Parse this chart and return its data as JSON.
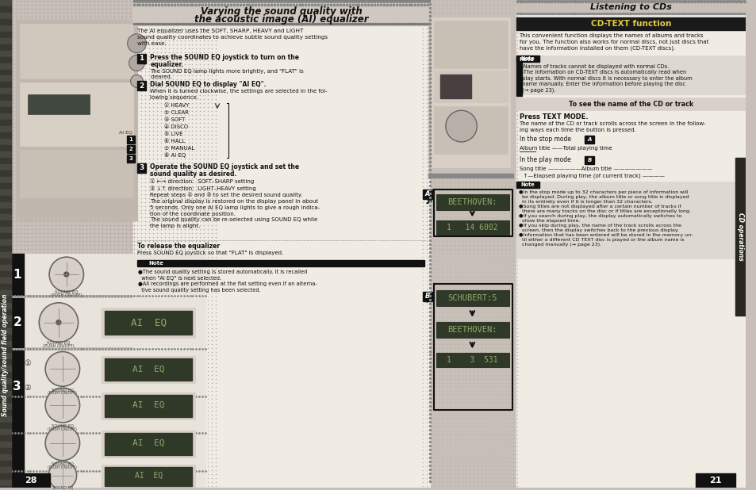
{
  "bg_color": "#c8c0b8",
  "left_page_num": "28",
  "right_page_num": "21",
  "left_title_line1": "Varying the sound quality with",
  "left_title_line2": "the acoustic image (AI) equalizer",
  "right_title": "Listening to CDs",
  "cd_text_title": "CD-TEXT function",
  "sidebar_text": "Sound quality/sound field operation",
  "cd_ops_text": "CD operations",
  "dot_color": "#a8a098",
  "dot_color2": "#b8b0a8",
  "white": "#f0ece4",
  "black": "#111111",
  "display_bg": "#303828",
  "display_text": "#90aa68",
  "page_light": "#e8e4dc"
}
